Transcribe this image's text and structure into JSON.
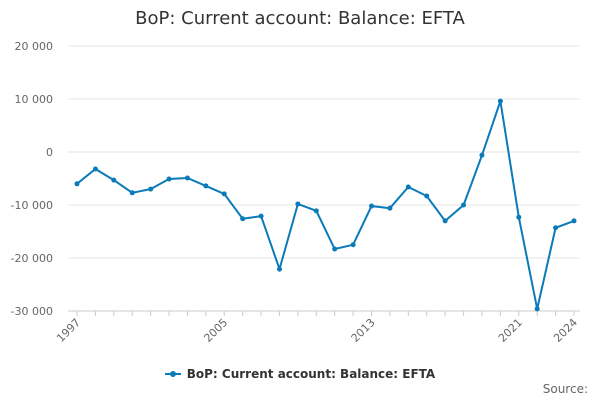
{
  "header": {
    "title": "BoP: Current account: Balance: EFTA"
  },
  "legend": {
    "label": "BoP: Current account: Balance: EFTA"
  },
  "footer": {
    "source_label": "Source:"
  },
  "colors": {
    "series": "#0a7ab8",
    "grid": "#e6e6e6",
    "axis_text": "#666666"
  },
  "chart_data": {
    "type": "line",
    "title": "BoP: Current account: Balance: EFTA",
    "xlabel": "",
    "ylabel": "",
    "ylim": [
      -30000,
      20000
    ],
    "yticks": [
      20000,
      10000,
      0,
      -10000,
      -20000,
      -30000
    ],
    "ytick_labels": [
      "20 000",
      "10 000",
      "0",
      "-10 000",
      "-20 000",
      "-30 000"
    ],
    "xtick_labels": [
      "1997",
      "2005",
      "2013",
      "2021",
      "2024"
    ],
    "grid": true,
    "legend_position": "bottom",
    "x": [
      1997,
      1998,
      1999,
      2000,
      2001,
      2002,
      2003,
      2004,
      2005,
      2006,
      2007,
      2008,
      2009,
      2010,
      2011,
      2012,
      2013,
      2014,
      2015,
      2016,
      2017,
      2018,
      2019,
      2020,
      2021,
      2022,
      2023,
      2024
    ],
    "series": [
      {
        "name": "BoP: Current account: Balance: EFTA",
        "values": [
          -6000,
          -3200,
          -5300,
          -7700,
          -7000,
          -5100,
          -4900,
          -6400,
          -7900,
          -12600,
          -12100,
          -22100,
          -9800,
          -11100,
          -18300,
          -17500,
          -10200,
          -10600,
          -6600,
          -8300,
          -13000,
          -10000,
          -600,
          9600,
          -12300,
          -29600,
          -14300,
          -13000
        ]
      }
    ]
  }
}
